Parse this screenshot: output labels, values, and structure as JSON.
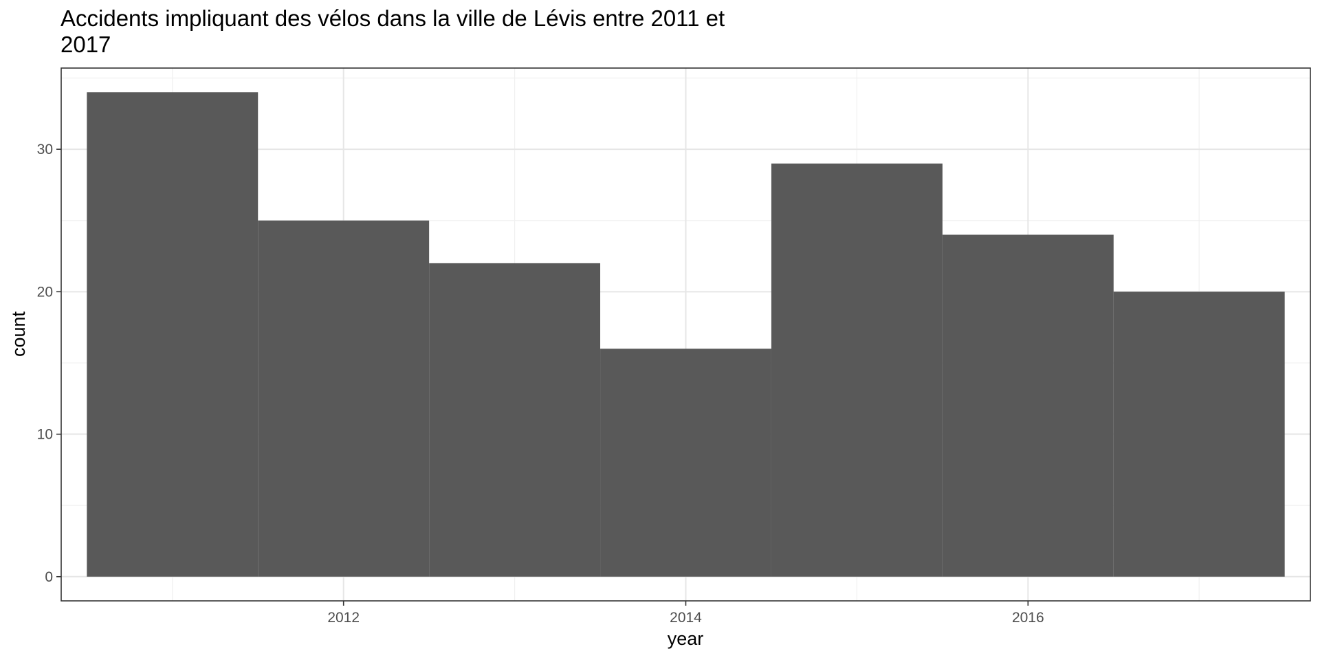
{
  "chart_data": {
    "type": "bar",
    "title_lines": [
      "Accidents impliquant des vélos dans la ville de Lévis entre 2011 et",
      "2017"
    ],
    "xlabel": "year",
    "ylabel": "count",
    "x": [
      2011,
      2012,
      2013,
      2014,
      2015,
      2016,
      2017
    ],
    "values": [
      34,
      25,
      22,
      16,
      29,
      24,
      20
    ],
    "xlim": [
      2010.35,
      2017.65
    ],
    "ylim": [
      -1.7,
      35.7
    ],
    "x_ticks": [
      2012,
      2014,
      2016
    ],
    "x_tick_labels": [
      "2012",
      "2014",
      "2016"
    ],
    "y_ticks": [
      0,
      10,
      20,
      30
    ],
    "y_tick_labels": [
      "0",
      "10",
      "20",
      "30"
    ],
    "bar_color": "#595959",
    "grid": true,
    "legend": "none"
  }
}
